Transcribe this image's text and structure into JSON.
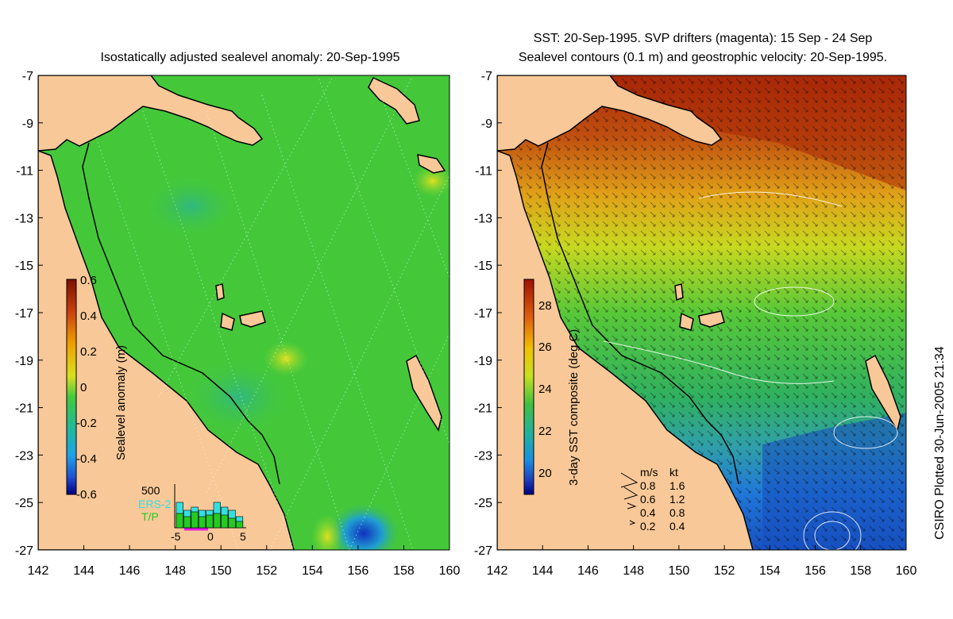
{
  "figure": {
    "left_title": "Isostatically adjusted sealevel anomaly: 20-Sep-1995",
    "right_title_line1": "SST: 20-Sep-1995. SVP drifters (magenta): 15 Sep - 24 Sep",
    "right_title_line2": "Sealevel contours (0.1 m) and geostrophic velocity: 20-Sep-1995.",
    "credit": "CSIRO Plotted 30-Jun-2005 21:34"
  },
  "axes": {
    "x_ticks": [
      "142",
      "144",
      "146",
      "148",
      "150",
      "152",
      "154",
      "156",
      "158",
      "160"
    ],
    "y_ticks": [
      "-7",
      "-9",
      "-11",
      "-13",
      "-15",
      "-17",
      "-19",
      "-21",
      "-23",
      "-25",
      "-27"
    ]
  },
  "left_colorbar": {
    "label": "Sealevel anomaly (m)",
    "ticks": [
      "0.6",
      "0.4",
      "0.2",
      "0",
      "-0.2",
      "-0.4",
      "-0.6"
    ]
  },
  "right_colorbar": {
    "label": "3-day SST composite (deg C)",
    "ticks": [
      "28",
      "26",
      "24",
      "22",
      "20"
    ]
  },
  "histogram": {
    "ymax_label": "500",
    "x_ticks": [
      "-5",
      "0",
      "5"
    ],
    "legend": [
      "ERS-2",
      "T/P"
    ],
    "colors": {
      "ers2": "#33e0e0",
      "tp": "#22cc22"
    }
  },
  "velocity_legend": {
    "header": [
      "m/s",
      "kt"
    ],
    "rows": [
      [
        "0.8",
        "1.6"
      ],
      [
        "0.6",
        "1.2"
      ],
      [
        "0.4",
        "0.8"
      ],
      [
        "0.2",
        "0.4"
      ]
    ]
  },
  "colors": {
    "land": "#f8c898",
    "sla_ocean": "#44c83a",
    "sst_warm": "#b83010",
    "sst_mid": "#c8d820",
    "sst_cool": "#30b050",
    "sst_cold": "#2080d8"
  }
}
